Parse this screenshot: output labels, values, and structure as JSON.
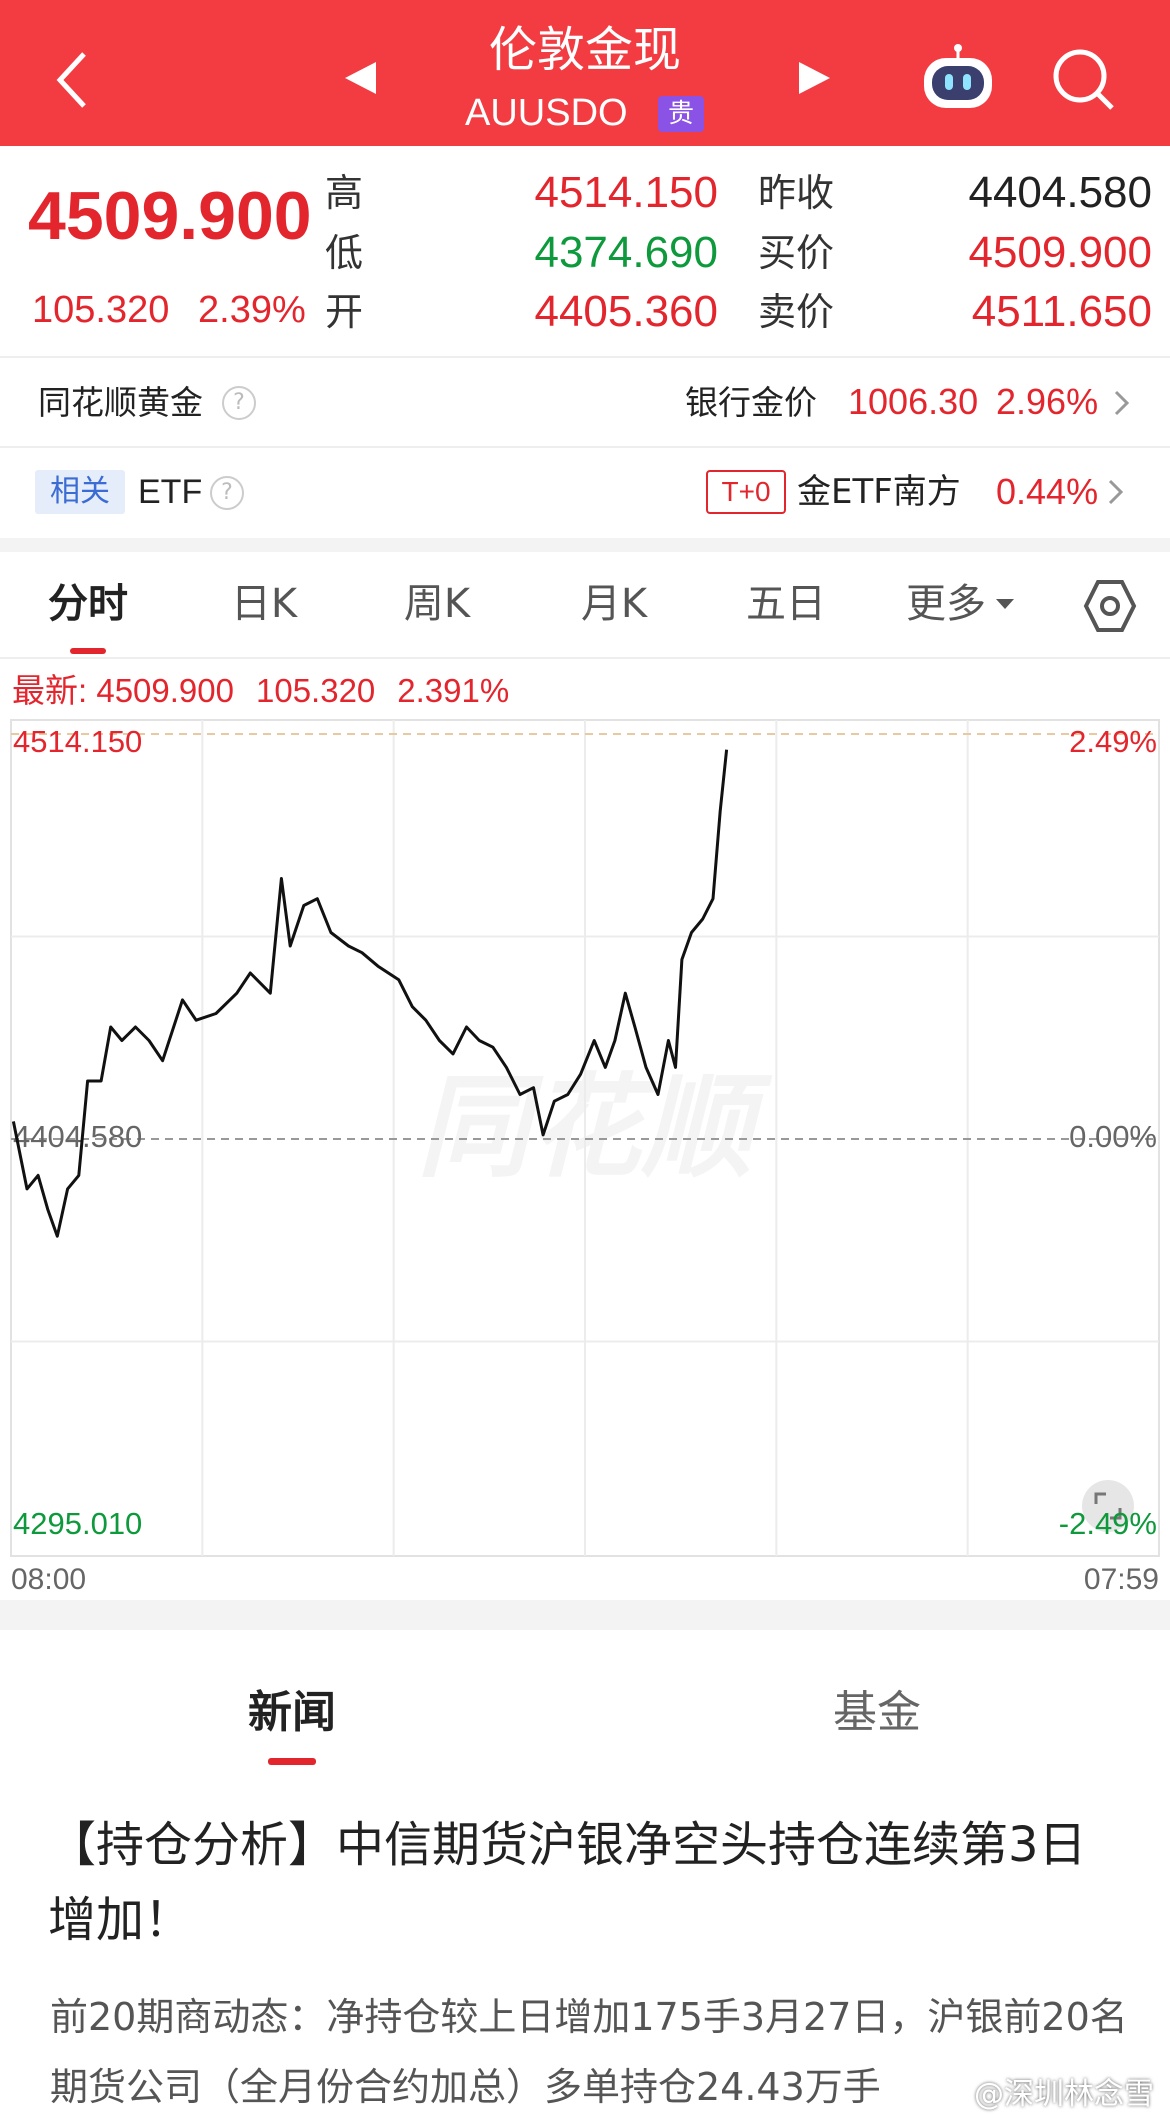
{
  "header": {
    "title": "伦敦金现",
    "code": "AUUSDO",
    "badge": "贵"
  },
  "quote": {
    "price": "4509.900",
    "change": "105.320",
    "change_pct": "2.39%",
    "fields": [
      {
        "label": "高",
        "value": "4514.150"
      },
      {
        "label": "低",
        "value": "4374.690"
      },
      {
        "label": "开",
        "value": "4405.360"
      },
      {
        "label": "昨收",
        "value": "4404.580"
      },
      {
        "label": "买价",
        "value": "4509.900"
      },
      {
        "label": "卖价",
        "value": "4511.650"
      }
    ]
  },
  "gold_row": {
    "label": "同花顺黄金",
    "bank_label": "银行金价",
    "bank_price": "1006.30",
    "bank_pct": "2.96%"
  },
  "etf_row": {
    "tag": "相关",
    "label": "ETF",
    "badge": "T+0",
    "fund": "金ETF南方",
    "pct": "0.44%"
  },
  "tabs": [
    "分时",
    "日K",
    "周K",
    "月K",
    "五日",
    "更多"
  ],
  "latest": {
    "label": "最新:",
    "price": "4509.900",
    "change": "105.320",
    "pct": "2.391%"
  },
  "chart_data": {
    "type": "line",
    "color": "#111111",
    "x": [
      3,
      20,
      34,
      46,
      58,
      71,
      85,
      96,
      113,
      125,
      139,
      156,
      173,
      190,
      215,
      232,
      257,
      283,
      300,
      325,
      339,
      350,
      367,
      384,
      401,
      423,
      440,
      460,
      486,
      503,
      520,
      537,
      554,
      571,
      587,
      604,
      621,
      638,
      655,
      667,
      681,
      698,
      714,
      731,
      745,
      757,
      770,
      782,
      796,
      811,
      824,
      833,
      841,
      853,
      867,
      880,
      889,
      897
    ],
    "values": [
      4409.33,
      4391.07,
      4394.72,
      4385.59,
      4378.29,
      4391.07,
      4394.72,
      4420.28,
      4420.28,
      4434.89,
      4431.24,
      4434.89,
      4431.24,
      4425.76,
      4442.2,
      4436.72,
      4438.54,
      4444.02,
      4449.5,
      4444.02,
      4475.06,
      4456.8,
      4467.76,
      4469.59,
      4460.46,
      4456.8,
      4454.98,
      4451.33,
      4447.67,
      4440.37,
      4436.72,
      4431.24,
      4427.59,
      4434.89,
      4431.24,
      4429.41,
      4423.94,
      4416.63,
      4418.46,
      4405.68,
      4414.81,
      4416.63,
      4422.11,
      4431.24,
      4423.94,
      4431.24,
      4444.02,
      4434.89,
      4423.94,
      4416.63,
      4431.24,
      4423.94,
      4453.15,
      4460.46,
      4464.11,
      4469.59,
      4493.32,
      4509.9
    ],
    "xlim": [
      0,
      1439
    ],
    "xticks": [
      {
        "value": 0,
        "label": "08:00"
      },
      {
        "value": 1439,
        "label": "07:59"
      }
    ],
    "ylim": [
      4295.01,
      4514.15
    ],
    "yticks": [
      {
        "value": 4295.01,
        "label": "4295.010"
      },
      {
        "value": 4404.58,
        "label": "4404.580"
      },
      {
        "value": 4514.15,
        "label": "4514.150"
      }
    ],
    "y2lim": [
      -2.49,
      2.49
    ],
    "y2ticks": [
      {
        "value": -2.49,
        "label": "-2.49%"
      },
      {
        "value": 0,
        "label": "0.00%"
      },
      {
        "value": 2.49,
        "label": "2.49%"
      }
    ]
  },
  "watermark": "同花顺",
  "news_tabs": [
    "新闻",
    "基金"
  ],
  "article": {
    "title": "【持仓分析】中信期货沪银净空头持仓连续第3日增加！",
    "body": "前20期商动态：净持仓较上日增加175手3月27日，沪银前20名期货公司（全月份合约加总）多单持仓24.43万手"
  },
  "credit": "@深圳林念雪"
}
